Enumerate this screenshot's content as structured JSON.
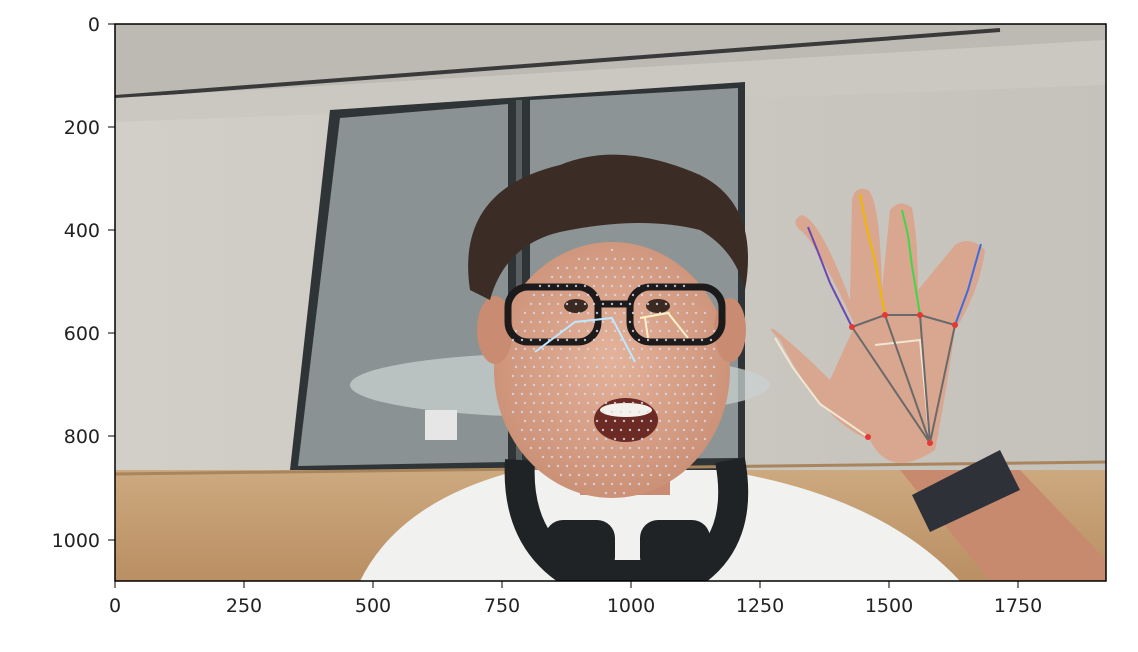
{
  "figure": {
    "xaxis": {
      "ticks": [
        "0",
        "250",
        "500",
        "750",
        "1000",
        "1250",
        "1500",
        "1750"
      ],
      "range": [
        0,
        1920
      ]
    },
    "yaxis": {
      "ticks": [
        "0",
        "200",
        "400",
        "600",
        "800",
        "1000"
      ],
      "range": [
        0,
        1080
      ]
    }
  },
  "image": {
    "description_elements": [
      "room-background",
      "glass-doors",
      "person-face",
      "face-mesh",
      "raised-hand",
      "hand-landmarks",
      "headphones",
      "smartwatch"
    ]
  },
  "colors": {
    "wall": "#c7c3bd",
    "ceiling": "#b9b5af",
    "glass": "#8f9596",
    "wood": "#c9a67c",
    "skin": "#d9a68d",
    "hair": "#3b2d25",
    "shirt": "#f2f2f0",
    "headphones": "#1f2326",
    "mesh": "#d8d8e8"
  }
}
